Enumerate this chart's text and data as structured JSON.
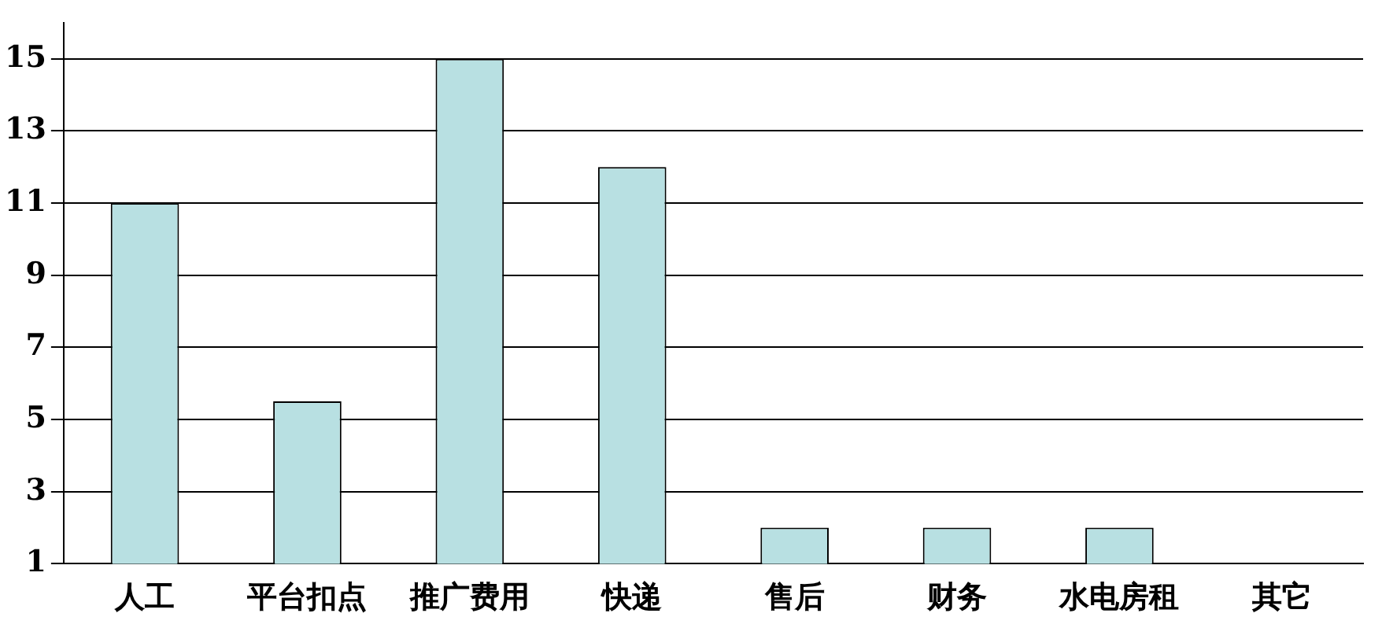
{
  "chart_data": {
    "type": "bar",
    "categories": [
      "人工",
      "平台扣点",
      "推广费用",
      "快递",
      "售后",
      "财务",
      "水电房租",
      "其它"
    ],
    "values": [
      11,
      5.5,
      15,
      12,
      2,
      2,
      2,
      null
    ],
    "color": "#b8e0e2",
    "ylim": [
      1,
      16
    ],
    "yticks": [
      1,
      3,
      5,
      7,
      9,
      11,
      13,
      15
    ],
    "grid": "y",
    "legend": false
  }
}
